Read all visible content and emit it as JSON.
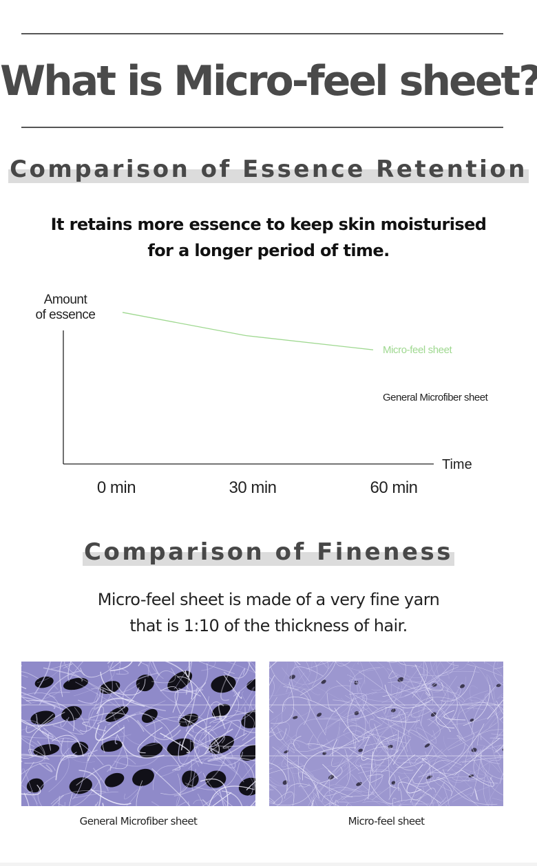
{
  "title": "What is Micro-feel sheet?",
  "section1": {
    "heading": "Comparison of Essence Retention",
    "lead_line1": "It retains more essence to keep skin moisturised",
    "lead_line2": "for a longer period of time."
  },
  "chart_data": {
    "type": "line",
    "title": "",
    "ylabel_line1": "Amount",
    "ylabel_line2": "of essence",
    "xlabel": "Time",
    "categories": [
      "0 min",
      "30 min",
      "60 min"
    ],
    "ylim": [
      0,
      100
    ],
    "series": [
      {
        "name": "Micro-feel sheet",
        "values": [
          85,
          72,
          64
        ],
        "color": "#9ed88f"
      },
      {
        "name": "General Microfiber sheet",
        "values": [
          null,
          null,
          null
        ],
        "color": "#222222"
      }
    ]
  },
  "section2": {
    "heading": "Comparison of Fineness",
    "lead_line1": "Micro-feel sheet is made of a very fine yarn",
    "lead_line2": "that is 1:10 of the thickness of hair."
  },
  "photos": [
    {
      "caption": "General Microfiber sheet",
      "icon": "coarse-fiber-micrograph"
    },
    {
      "caption": "Micro-feel sheet",
      "icon": "fine-fiber-micrograph"
    }
  ],
  "colors": {
    "title": "#4a4a4a",
    "highlight": "#dcdcdc",
    "micro_feel_line": "#9ed88f",
    "fiber": "#8e88c8"
  }
}
